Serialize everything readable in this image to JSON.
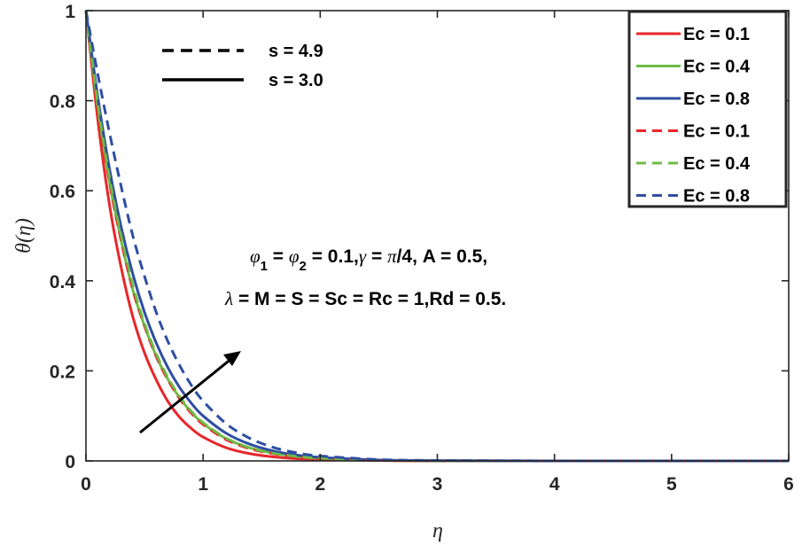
{
  "chart_data": {
    "type": "line",
    "xlabel": "η",
    "ylabel": "θ(η)",
    "xlim": [
      0,
      6
    ],
    "ylim": [
      0,
      1
    ],
    "x_ticks": [
      "0",
      "1",
      "2",
      "3",
      "4",
      "5",
      "6"
    ],
    "y_ticks": [
      "0",
      "0.2",
      "0.4",
      "0.6",
      "0.8",
      "1"
    ],
    "x": [
      0,
      0.1,
      0.2,
      0.3,
      0.4,
      0.5,
      0.6,
      0.7,
      0.8,
      0.9,
      1.0,
      1.2,
      1.4,
      1.6,
      1.8,
      2.0,
      2.5,
      3.0,
      4.0,
      5.0,
      6.0
    ],
    "series": [
      {
        "name": "Ec = 0.1",
        "color": "#e8262a",
        "style": "solid",
        "values": [
          1.0,
          0.76,
          0.57,
          0.43,
          0.32,
          0.24,
          0.18,
          0.132,
          0.097,
          0.072,
          0.053,
          0.029,
          0.016,
          0.009,
          0.005,
          0.003,
          0.001,
          0.0,
          0.0,
          0.0,
          0.0
        ]
      },
      {
        "name": "Ec = 0.4",
        "color": "#6dbb45",
        "style": "solid",
        "values": [
          1.0,
          0.79,
          0.62,
          0.49,
          0.38,
          0.3,
          0.233,
          0.181,
          0.14,
          0.108,
          0.083,
          0.049,
          0.029,
          0.017,
          0.01,
          0.006,
          0.002,
          0.0005,
          0.0,
          0.0,
          0.0
        ]
      },
      {
        "name": "Ec = 0.8",
        "color": "#2e4ea2",
        "style": "solid",
        "values": [
          1.0,
          0.81,
          0.65,
          0.52,
          0.415,
          0.33,
          0.262,
          0.207,
          0.163,
          0.128,
          0.1,
          0.061,
          0.037,
          0.022,
          0.013,
          0.008,
          0.002,
          0.0006,
          0.0,
          0.0,
          0.0
        ]
      },
      {
        "name": "Ec = 0.1",
        "color": "#e8262a",
        "style": "dashed",
        "values": [
          1.0,
          0.79,
          0.62,
          0.49,
          0.38,
          0.3,
          0.232,
          0.18,
          0.138,
          0.106,
          0.081,
          0.047,
          0.027,
          0.016,
          0.009,
          0.005,
          0.0015,
          0.0004,
          0.0,
          0.0,
          0.0
        ]
      },
      {
        "name": "Ec = 0.4",
        "color": "#6dbb45",
        "style": "dashed",
        "values": [
          1.0,
          0.795,
          0.63,
          0.5,
          0.39,
          0.305,
          0.238,
          0.185,
          0.143,
          0.11,
          0.085,
          0.05,
          0.029,
          0.017,
          0.01,
          0.006,
          0.002,
          0.0005,
          0.0,
          0.0,
          0.0
        ]
      },
      {
        "name": "Ec = 0.8",
        "color": "#2e4ea2",
        "style": "dashed",
        "values": [
          1.0,
          0.86,
          0.73,
          0.61,
          0.5,
          0.41,
          0.33,
          0.265,
          0.212,
          0.168,
          0.133,
          0.082,
          0.05,
          0.03,
          0.018,
          0.011,
          0.003,
          0.001,
          0.0,
          0.0,
          0.0
        ]
      }
    ],
    "legend_position": "top-right",
    "line_style_legend": [
      {
        "label": "s = 4.9",
        "style": "dashed"
      },
      {
        "label": "s = 3.0",
        "style": "solid"
      }
    ],
    "annotation": {
      "line1": {
        "phi": "φ",
        "sub1": "1",
        "eq1": " = ",
        "sub2": "2",
        "mid": " = 0.1,",
        "gamma": "γ",
        "gamma_eq": " = ",
        "pi": "π",
        "rest": "/4, A = 0.5,"
      },
      "line2": {
        "lambda": "λ",
        "rest": " = M = S = Sc = Rc = 1,Rd = 0.5."
      }
    }
  }
}
